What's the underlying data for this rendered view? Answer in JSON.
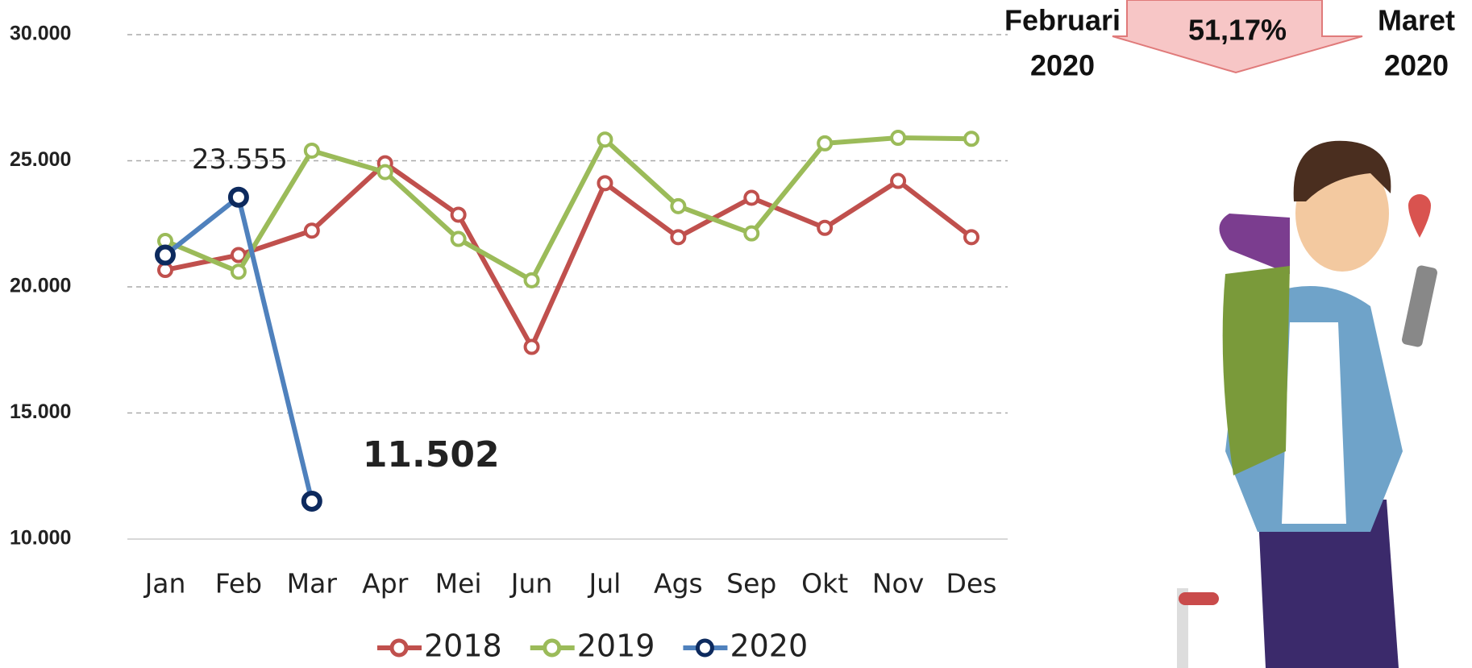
{
  "chart_data": {
    "type": "line",
    "categories": [
      "Jan",
      "Feb",
      "Mar",
      "Apr",
      "Mei",
      "Jun",
      "Jul",
      "Ags",
      "Sep",
      "Okt",
      "Nov",
      "Des"
    ],
    "series": [
      {
        "name": "2018",
        "color": "#c0504d",
        "values": [
          20670,
          21260,
          22230,
          24900,
          22860,
          17620,
          24110,
          21970,
          23530,
          22340,
          24200,
          21970
        ]
      },
      {
        "name": "2019",
        "color": "#9bbb59",
        "values": [
          21820,
          20600,
          25400,
          24550,
          21900,
          20260,
          25840,
          23200,
          22120,
          25690,
          25910,
          25870
        ]
      },
      {
        "name": "2020",
        "color": "#4f81bd",
        "marker_color": "#0d2a5e",
        "values": [
          21260,
          23555,
          11502,
          null,
          null,
          null,
          null,
          null,
          null,
          null,
          null,
          null
        ],
        "value_labels": [
          null,
          "23.555",
          "11.502",
          null,
          null,
          null,
          null,
          null,
          null,
          null,
          null,
          null
        ]
      }
    ],
    "ylim": [
      10000,
      30000
    ],
    "yticks": [
      {
        "value": 10000,
        "label": "10.000"
      },
      {
        "value": 15000,
        "label": "15.000"
      },
      {
        "value": 20000,
        "label": "20.000"
      },
      {
        "value": 25000,
        "label": "25.000"
      },
      {
        "value": 30000,
        "label": "30.000"
      }
    ],
    "grid": true,
    "legend": "bottom",
    "annotation": {
      "from": [
        "Februari",
        "2020"
      ],
      "change": "51,17%",
      "to": [
        "Maret",
        "2020"
      ]
    }
  }
}
